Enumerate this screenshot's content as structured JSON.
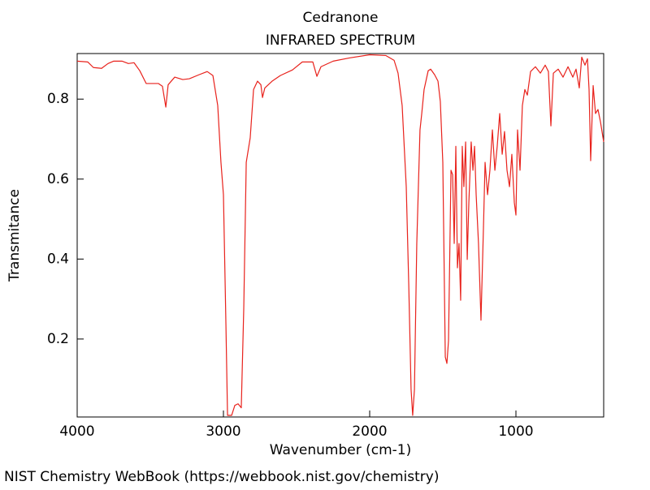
{
  "chart_data": {
    "type": "line",
    "title": "Cedranone",
    "subtitle": "INFRARED SPECTRUM",
    "x_label": "Wavenumber (cm-1)",
    "y_label": "Transmitance",
    "source": "NIST Chemistry WebBook (https://webbook.nist.gov/chemistry)",
    "color": "#e8221c",
    "xlim": [
      4000,
      400
    ],
    "ylim": [
      0.005,
      0.914
    ],
    "xticks": [
      4000,
      3000,
      2000,
      1000
    ],
    "yticks": [
      0.2,
      0.4,
      0.6,
      0.8
    ],
    "x": [
      4000,
      3928,
      3889,
      3833,
      3789,
      3750,
      3694,
      3650,
      3611,
      3572,
      3528,
      3444,
      3417,
      3394,
      3378,
      3333,
      3278,
      3233,
      3167,
      3111,
      3072,
      3039,
      3017,
      3000,
      2983,
      2972,
      2944,
      2922,
      2900,
      2878,
      2861,
      2844,
      2817,
      2794,
      2767,
      2744,
      2733,
      2717,
      2667,
      2611,
      2528,
      2461,
      2389,
      2361,
      2333,
      2250,
      2139,
      2000,
      1889,
      1833,
      1806,
      1778,
      1750,
      1733,
      1717,
      1706,
      1694,
      1678,
      1656,
      1644,
      1628,
      1600,
      1583,
      1556,
      1533,
      1517,
      1500,
      1483,
      1472,
      1461,
      1444,
      1433,
      1422,
      1411,
      1400,
      1389,
      1378,
      1367,
      1356,
      1344,
      1333,
      1322,
      1306,
      1294,
      1283,
      1272,
      1256,
      1239,
      1222,
      1211,
      1194,
      1178,
      1161,
      1144,
      1128,
      1111,
      1094,
      1078,
      1061,
      1044,
      1028,
      1011,
      1000,
      989,
      972,
      956,
      939,
      922,
      900,
      867,
      833,
      800,
      778,
      761,
      744,
      711,
      678,
      644,
      611,
      589,
      567,
      550,
      528,
      511,
      500,
      489,
      472,
      456,
      439,
      422,
      400
    ],
    "values": [
      0.895,
      0.893,
      0.879,
      0.877,
      0.889,
      0.895,
      0.895,
      0.889,
      0.891,
      0.871,
      0.839,
      0.839,
      0.832,
      0.78,
      0.836,
      0.855,
      0.849,
      0.851,
      0.861,
      0.869,
      0.859,
      0.784,
      0.642,
      0.561,
      0.236,
      0.009,
      0.009,
      0.034,
      0.038,
      0.028,
      0.277,
      0.642,
      0.703,
      0.824,
      0.845,
      0.836,
      0.804,
      0.828,
      0.845,
      0.859,
      0.873,
      0.893,
      0.893,
      0.857,
      0.881,
      0.895,
      0.903,
      0.911,
      0.909,
      0.897,
      0.865,
      0.784,
      0.581,
      0.338,
      0.074,
      0.009,
      0.074,
      0.439,
      0.723,
      0.764,
      0.824,
      0.871,
      0.875,
      0.861,
      0.845,
      0.794,
      0.642,
      0.155,
      0.139,
      0.196,
      0.622,
      0.611,
      0.439,
      0.682,
      0.378,
      0.439,
      0.297,
      0.682,
      0.581,
      0.693,
      0.399,
      0.541,
      0.693,
      0.622,
      0.682,
      0.561,
      0.439,
      0.247,
      0.48,
      0.642,
      0.561,
      0.622,
      0.723,
      0.622,
      0.682,
      0.764,
      0.662,
      0.719,
      0.622,
      0.581,
      0.662,
      0.541,
      0.51,
      0.723,
      0.622,
      0.784,
      0.824,
      0.81,
      0.869,
      0.881,
      0.865,
      0.885,
      0.869,
      0.733,
      0.865,
      0.875,
      0.855,
      0.881,
      0.855,
      0.875,
      0.828,
      0.905,
      0.885,
      0.901,
      0.824,
      0.646,
      0.834,
      0.764,
      0.774,
      0.743,
      0.693
    ]
  }
}
